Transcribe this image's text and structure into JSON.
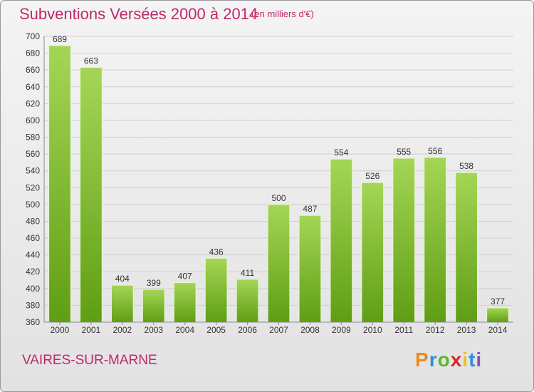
{
  "header": {
    "title": "Subventions Versées 2000 à 2014",
    "subtitle": "(en milliers d'€)"
  },
  "footer": {
    "commune": "VAIRES-SUR-MARNE",
    "logo_letters": [
      "P",
      "r",
      "o",
      "x",
      "i",
      "t",
      "i"
    ]
  },
  "colors": {
    "accent": "#c0286a",
    "bar_top": "#a4d656",
    "bar_bottom": "#5f9e14"
  },
  "chart_data": {
    "type": "bar",
    "title": "Subventions Versées 2000 à 2014",
    "subtitle": "(en milliers d'€)",
    "xlabel": "",
    "ylabel": "",
    "categories": [
      "2000",
      "2001",
      "2002",
      "2003",
      "2004",
      "2005",
      "2006",
      "2007",
      "2008",
      "2009",
      "2010",
      "2011",
      "2012",
      "2013",
      "2014"
    ],
    "values": [
      689,
      663,
      404,
      399,
      407,
      436,
      411,
      500,
      487,
      554,
      526,
      555,
      556,
      538,
      377
    ],
    "ylim": [
      360,
      700
    ],
    "yticks": [
      360,
      380,
      400,
      420,
      440,
      460,
      480,
      500,
      520,
      540,
      560,
      580,
      600,
      620,
      640,
      660,
      680,
      700
    ],
    "grid": true,
    "data_labels": true,
    "legend": "none"
  }
}
